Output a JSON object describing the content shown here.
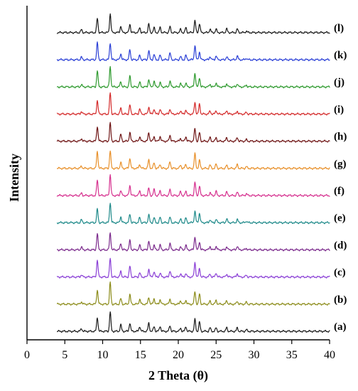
{
  "chart_data": {
    "type": "line",
    "xlabel": "2 Theta (θ)",
    "ylabel": "Intensity",
    "xlim": [
      0,
      40
    ],
    "xticks": [
      "0",
      "5",
      "10",
      "15",
      "20",
      "25",
      "30",
      "35",
      "40"
    ],
    "x_range_measured": [
      4,
      40
    ],
    "grid": false,
    "legend": "labels at right end of each trace",
    "peaks": [
      {
        "x": 7.2,
        "h": 0.12
      },
      {
        "x": 9.3,
        "h": 0.72
      },
      {
        "x": 11.0,
        "h": 0.9
      },
      {
        "x": 12.4,
        "h": 0.28
      },
      {
        "x": 13.6,
        "h": 0.45
      },
      {
        "x": 14.9,
        "h": 0.22
      },
      {
        "x": 16.1,
        "h": 0.38
      },
      {
        "x": 16.8,
        "h": 0.25
      },
      {
        "x": 17.6,
        "h": 0.22
      },
      {
        "x": 18.9,
        "h": 0.28
      },
      {
        "x": 20.3,
        "h": 0.16
      },
      {
        "x": 21.0,
        "h": 0.2
      },
      {
        "x": 22.2,
        "h": 0.62
      },
      {
        "x": 22.8,
        "h": 0.42
      },
      {
        "x": 24.2,
        "h": 0.15
      },
      {
        "x": 25.0,
        "h": 0.18
      },
      {
        "x": 26.4,
        "h": 0.16
      },
      {
        "x": 27.8,
        "h": 0.16
      },
      {
        "x": 29.0,
        "h": 0.08
      }
    ],
    "series": [
      {
        "label": "(a)",
        "color": "#1a1a1a"
      },
      {
        "label": "(b)",
        "color": "#8c8c1a"
      },
      {
        "label": "(c)",
        "color": "#8a3fd6"
      },
      {
        "label": "(d)",
        "color": "#7b2a8c"
      },
      {
        "label": "(e)",
        "color": "#1f8a8a"
      },
      {
        "label": "(f)",
        "color": "#d6318f"
      },
      {
        "label": "(g)",
        "color": "#e8902a"
      },
      {
        "label": "(h)",
        "color": "#6e1414"
      },
      {
        "label": "(i)",
        "color": "#d42a2a"
      },
      {
        "label": "(j)",
        "color": "#2e9a2e"
      },
      {
        "label": "(k)",
        "color": "#2a3fd6"
      },
      {
        "label": "(l)",
        "color": "#1a1a1a"
      }
    ]
  }
}
